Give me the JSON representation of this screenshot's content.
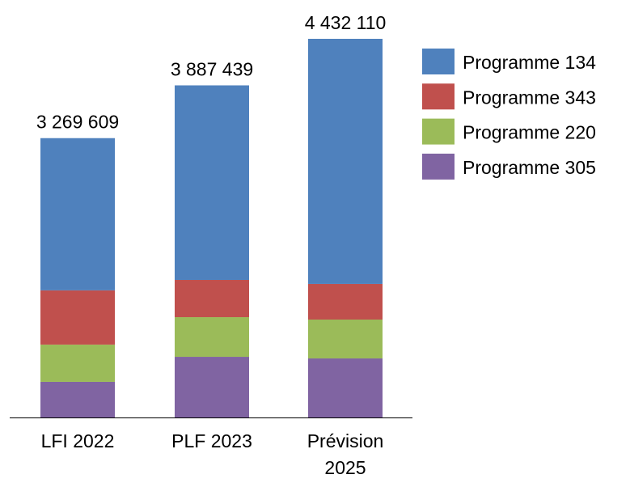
{
  "chart_data": {
    "type": "bar",
    "stacked": true,
    "title": "",
    "xlabel": "",
    "ylabel": "",
    "categories": [
      "LFI 2022",
      "PLF 2023",
      "Prévision 2025"
    ],
    "category_lines": [
      [
        "LFI 2022"
      ],
      [
        "PLF 2023"
      ],
      [
        "Prévision",
        "2025"
      ]
    ],
    "totals": [
      3269609,
      3887439,
      4432110
    ],
    "total_labels": [
      "3 269 609",
      "3 887 439",
      "4 432 110"
    ],
    "series": [
      {
        "name": "Programme 305",
        "color": "#8064A2",
        "values": [
          417000,
          710000,
          691000
        ]
      },
      {
        "name": "Programme 220",
        "color": "#9BBB59",
        "values": [
          436000,
          464000,
          455000
        ]
      },
      {
        "name": "Programme 343",
        "color": "#C0504D",
        "values": [
          635000,
          436000,
          417000
        ]
      },
      {
        "name": "Programme 134",
        "color": "#4F81BD",
        "values": [
          1781609,
          2277439,
          2869110
        ]
      }
    ],
    "legend_order": [
      "Programme 134",
      "Programme 343",
      "Programme 220",
      "Programme 305"
    ],
    "legend_position": "right",
    "y_axis_visible": false,
    "grid": false
  }
}
